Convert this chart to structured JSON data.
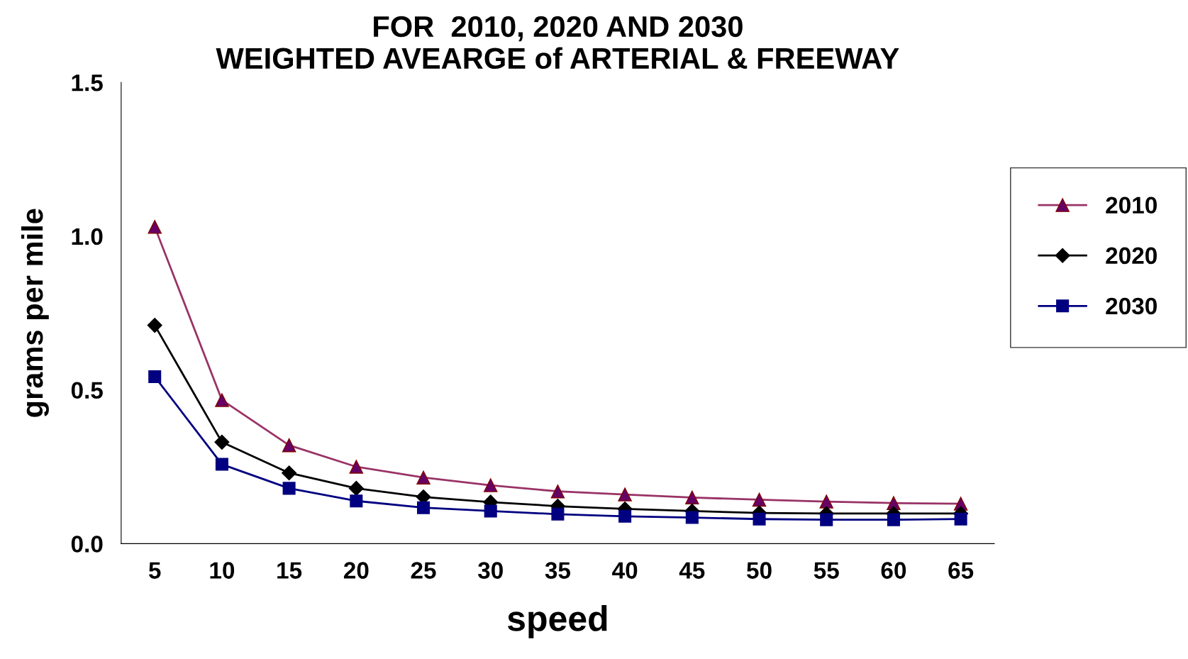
{
  "chart_data": {
    "type": "line",
    "title": "FOR  2010, 2020 AND 2030\nWEIGHTED AVEARGE of ARTERIAL & FREEWAY",
    "xlabel": "speed",
    "ylabel": "grams per mile",
    "categories": [
      "5",
      "10",
      "15",
      "20",
      "25",
      "30",
      "35",
      "40",
      "45",
      "50",
      "55",
      "60",
      "65"
    ],
    "series": [
      {
        "name": "2010",
        "color": "#993366",
        "marker": "triangle",
        "values": [
          1.03,
          0.467,
          0.32,
          0.25,
          0.215,
          0.19,
          0.17,
          0.16,
          0.15,
          0.143,
          0.137,
          0.132,
          0.13
        ]
      },
      {
        "name": "2020",
        "color": "#000000",
        "marker": "diamond",
        "values": [
          0.71,
          0.33,
          0.23,
          0.18,
          0.152,
          0.135,
          0.122,
          0.113,
          0.106,
          0.1,
          0.098,
          0.098,
          0.098
        ]
      },
      {
        "name": "2030",
        "color": "#000080",
        "marker": "square",
        "values": [
          0.543,
          0.258,
          0.18,
          0.139,
          0.117,
          0.106,
          0.096,
          0.089,
          0.085,
          0.08,
          0.078,
          0.078,
          0.08
        ]
      }
    ],
    "ylim": [
      0,
      1.5
    ],
    "yticks": [
      {
        "value": 0,
        "label": "0.0"
      },
      {
        "value": 0.5,
        "label": "0.5"
      },
      {
        "value": 1,
        "label": "1.0"
      },
      {
        "value": 1.5,
        "label": "1.5"
      }
    ],
    "grid": false,
    "legend": "right",
    "line_style": "solid"
  }
}
